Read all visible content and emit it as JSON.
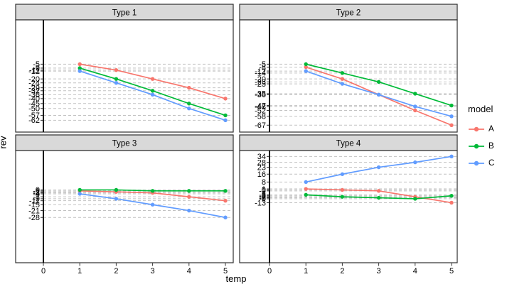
{
  "figure": {
    "background": "#ffffff",
    "text_color": "#000000"
  },
  "legend": {
    "title": "model",
    "position": "right",
    "items": [
      {
        "label": "A",
        "color": "#F8766D"
      },
      {
        "label": "B",
        "color": "#00BA38"
      },
      {
        "label": "C",
        "color": "#619CFF"
      }
    ]
  },
  "panel_style": {
    "strip_fill": "#D9D9D9",
    "strip_border": "#2F2F2F",
    "panel_border": "#2F2F2F",
    "grid_color": "#C2C2C2",
    "axis_line_color": "#000000",
    "grid_style": "dashed"
  },
  "chart_data": {
    "type": "line",
    "xlabel": "temp",
    "ylabel": "rev",
    "x": [
      1,
      2,
      3,
      4,
      5
    ],
    "x_ticks": [
      "0",
      "1",
      "2",
      "3",
      "4",
      "5"
    ],
    "xlim": [
      0,
      5.2
    ],
    "ylim": [
      -74,
      40
    ],
    "grid": "horizontal dashed line at every y data value, per panel",
    "y_breaks": "unique data values of each facet, labeled (labels overlap)",
    "legend_position": "right",
    "facets": [
      {
        "title": "Type 1",
        "series": [
          {
            "name": "A",
            "color": "#F8766D",
            "values": [
              -5,
              -11,
              -20,
              -29,
              -40
            ]
          },
          {
            "name": "B",
            "color": "#00BA38",
            "values": [
              -9,
              -20,
              -32,
              -45,
              -57
            ]
          },
          {
            "name": "C",
            "color": "#619CFF",
            "values": [
              -12,
              -24,
              -36,
              -50,
              -62
            ]
          }
        ]
      },
      {
        "title": "Type 2",
        "series": [
          {
            "name": "A",
            "color": "#F8766D",
            "values": [
              -8,
              -20,
              -36,
              -52,
              -67
            ]
          },
          {
            "name": "B",
            "color": "#00BA38",
            "values": [
              -5,
              -14,
              -23,
              -35,
              -47
            ]
          },
          {
            "name": "C",
            "color": "#619CFF",
            "values": [
              -12,
              -25,
              -36,
              -48,
              -58
            ]
          }
        ]
      },
      {
        "title": "Type 3",
        "series": [
          {
            "name": "A",
            "color": "#F8766D",
            "values": [
              -1,
              -2,
              -3,
              -7,
              -11
            ]
          },
          {
            "name": "B",
            "color": "#00BA38",
            "values": [
              0,
              0,
              -1,
              -1,
              -1
            ]
          },
          {
            "name": "C",
            "color": "#619CFF",
            "values": [
              -4,
              -9,
              -15,
              -21,
              -28
            ]
          }
        ]
      },
      {
        "title": "Type 4",
        "series": [
          {
            "name": "A",
            "color": "#F8766D",
            "values": [
              1,
              0,
              -1,
              -7,
              -13
            ]
          },
          {
            "name": "B",
            "color": "#00BA38",
            "values": [
              -5,
              -7,
              -8,
              -9,
              -6
            ]
          },
          {
            "name": "C",
            "color": "#619CFF",
            "values": [
              8,
              16,
              23,
              28,
              34
            ]
          }
        ]
      }
    ]
  }
}
